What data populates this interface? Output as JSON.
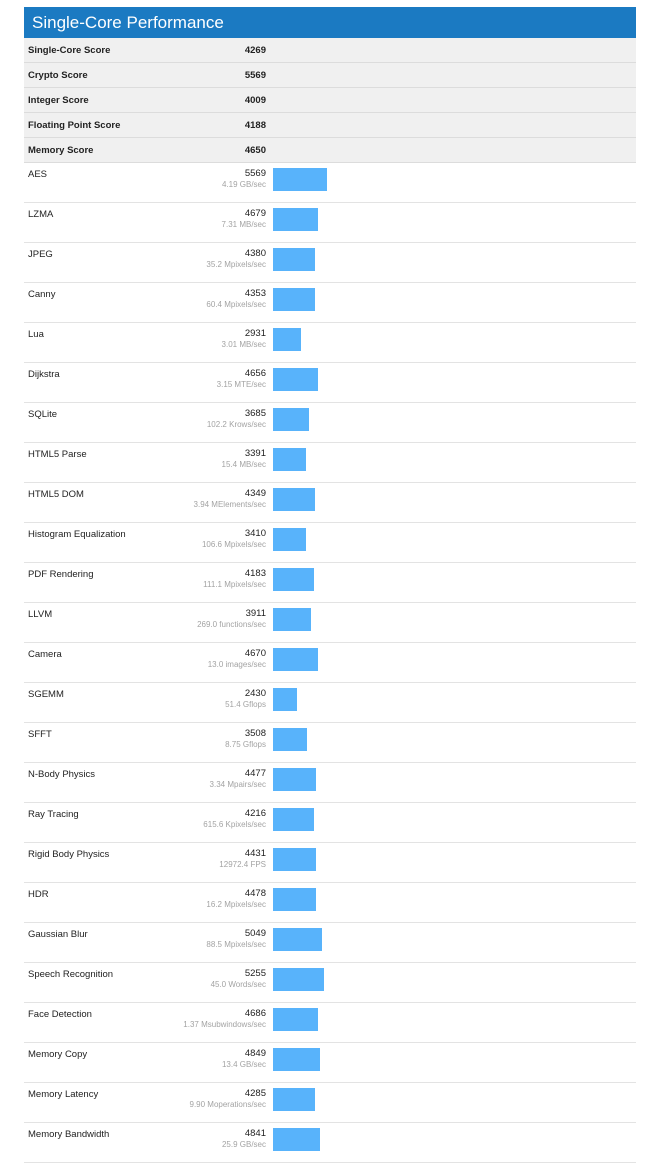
{
  "title": "Single-Core Performance",
  "accent_color": "#1b7ac2",
  "bar_color": "#58b3fb",
  "bar_scale_max": 5569,
  "summary": [
    {
      "name": "Single-Core Score",
      "score": "4269"
    },
    {
      "name": "Crypto Score",
      "score": "5569"
    },
    {
      "name": "Integer Score",
      "score": "4009"
    },
    {
      "name": "Floating Point Score",
      "score": "4188"
    },
    {
      "name": "Memory Score",
      "score": "4650"
    }
  ],
  "benchmarks": [
    {
      "name": "AES",
      "score": "5569",
      "rate": "4.19 GB/sec",
      "value": 5569
    },
    {
      "name": "LZMA",
      "score": "4679",
      "rate": "7.31 MB/sec",
      "value": 4679
    },
    {
      "name": "JPEG",
      "score": "4380",
      "rate": "35.2 Mpixels/sec",
      "value": 4380
    },
    {
      "name": "Canny",
      "score": "4353",
      "rate": "60.4 Mpixels/sec",
      "value": 4353
    },
    {
      "name": "Lua",
      "score": "2931",
      "rate": "3.01 MB/sec",
      "value": 2931
    },
    {
      "name": "Dijkstra",
      "score": "4656",
      "rate": "3.15 MTE/sec",
      "value": 4656
    },
    {
      "name": "SQLite",
      "score": "3685",
      "rate": "102.2 Krows/sec",
      "value": 3685
    },
    {
      "name": "HTML5 Parse",
      "score": "3391",
      "rate": "15.4 MB/sec",
      "value": 3391
    },
    {
      "name": "HTML5 DOM",
      "score": "4349",
      "rate": "3.94 MElements/sec",
      "value": 4349
    },
    {
      "name": "Histogram Equalization",
      "score": "3410",
      "rate": "106.6 Mpixels/sec",
      "value": 3410
    },
    {
      "name": "PDF Rendering",
      "score": "4183",
      "rate": "111.1 Mpixels/sec",
      "value": 4183
    },
    {
      "name": "LLVM",
      "score": "3911",
      "rate": "269.0 functions/sec",
      "value": 3911
    },
    {
      "name": "Camera",
      "score": "4670",
      "rate": "13.0 images/sec",
      "value": 4670
    },
    {
      "name": "SGEMM",
      "score": "2430",
      "rate": "51.4 Gflops",
      "value": 2430
    },
    {
      "name": "SFFT",
      "score": "3508",
      "rate": "8.75 Gflops",
      "value": 3508
    },
    {
      "name": "N-Body Physics",
      "score": "4477",
      "rate": "3.34 Mpairs/sec",
      "value": 4477
    },
    {
      "name": "Ray Tracing",
      "score": "4216",
      "rate": "615.6 Kpixels/sec",
      "value": 4216
    },
    {
      "name": "Rigid Body Physics",
      "score": "4431",
      "rate": "12972.4 FPS",
      "value": 4431
    },
    {
      "name": "HDR",
      "score": "4478",
      "rate": "16.2 Mpixels/sec",
      "value": 4478
    },
    {
      "name": "Gaussian Blur",
      "score": "5049",
      "rate": "88.5 Mpixels/sec",
      "value": 5049
    },
    {
      "name": "Speech Recognition",
      "score": "5255",
      "rate": "45.0 Words/sec",
      "value": 5255
    },
    {
      "name": "Face Detection",
      "score": "4686",
      "rate": "1.37 Msubwindows/sec",
      "value": 4686
    },
    {
      "name": "Memory Copy",
      "score": "4849",
      "rate": "13.4 GB/sec",
      "value": 4849
    },
    {
      "name": "Memory Latency",
      "score": "4285",
      "rate": "9.90 Moperations/sec",
      "value": 4285
    },
    {
      "name": "Memory Bandwidth",
      "score": "4841",
      "rate": "25.9 GB/sec",
      "value": 4841
    }
  ]
}
